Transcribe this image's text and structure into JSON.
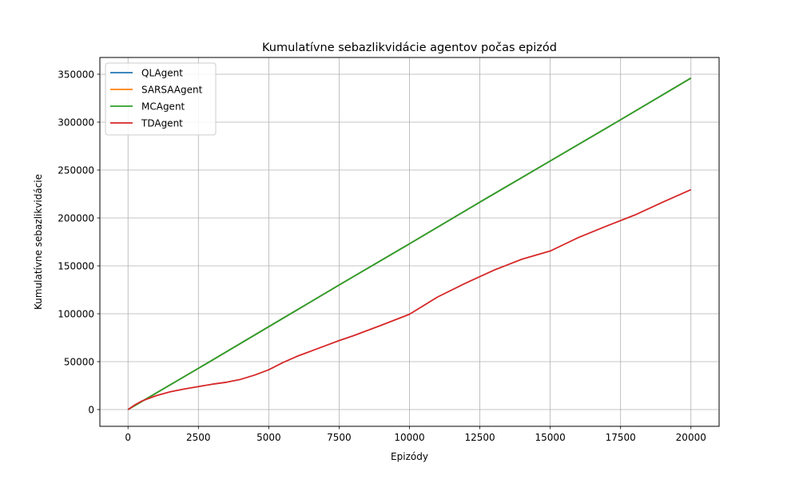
{
  "chart_data": {
    "type": "line",
    "title": "Kumulatívne sebazlikvidácie agentov počas epizód",
    "xlabel": "Epizódy",
    "ylabel": "Kumulatívne sebazlikvidácie",
    "xlim": [
      -1000,
      21000
    ],
    "ylim": [
      -17500,
      367500
    ],
    "xticks": [
      0,
      2500,
      5000,
      7500,
      10000,
      12500,
      15000,
      17500,
      20000
    ],
    "yticks": [
      0,
      50000,
      100000,
      150000,
      200000,
      250000,
      300000,
      350000
    ],
    "grid": true,
    "legend_position": "top-left",
    "series": [
      {
        "name": "QLAgent",
        "color": "#1f77b4",
        "x": [
          0,
          2500,
          5000,
          7500,
          10000,
          12500,
          15000,
          17500,
          20000
        ],
        "y": [
          0,
          43000,
          86500,
          130000,
          173000,
          216500,
          259500,
          302500,
          346000
        ]
      },
      {
        "name": "SARSAAgent",
        "color": "#ff7f0e",
        "x": [
          0,
          2500,
          5000,
          7500,
          10000,
          12500,
          15000,
          17500,
          20000
        ],
        "y": [
          0,
          43000,
          86500,
          130000,
          173000,
          216500,
          259500,
          302500,
          346000
        ]
      },
      {
        "name": "MCAgent",
        "color": "#2ca02c",
        "x": [
          0,
          2500,
          5000,
          7500,
          10000,
          12500,
          15000,
          17500,
          20000
        ],
        "y": [
          0,
          43000,
          86500,
          130000,
          173000,
          216500,
          259500,
          302500,
          346000
        ]
      },
      {
        "name": "TDAgent",
        "color": "#d62728",
        "x": [
          0,
          250,
          500,
          1000,
          1500,
          2000,
          2500,
          3000,
          3500,
          4000,
          4500,
          5000,
          5500,
          6000,
          6500,
          7000,
          7500,
          8000,
          9000,
          10000,
          11000,
          12000,
          13000,
          14000,
          15000,
          15500,
          16000,
          17000,
          18000,
          19000,
          20000
        ],
        "y": [
          0,
          5000,
          9000,
          14500,
          18500,
          21500,
          24000,
          26500,
          28500,
          31500,
          36000,
          41500,
          49000,
          55500,
          61000,
          66500,
          72000,
          77000,
          88000,
          99500,
          117500,
          132000,
          145500,
          157000,
          165500,
          172500,
          179500,
          191500,
          203000,
          216500,
          229500
        ]
      }
    ]
  }
}
